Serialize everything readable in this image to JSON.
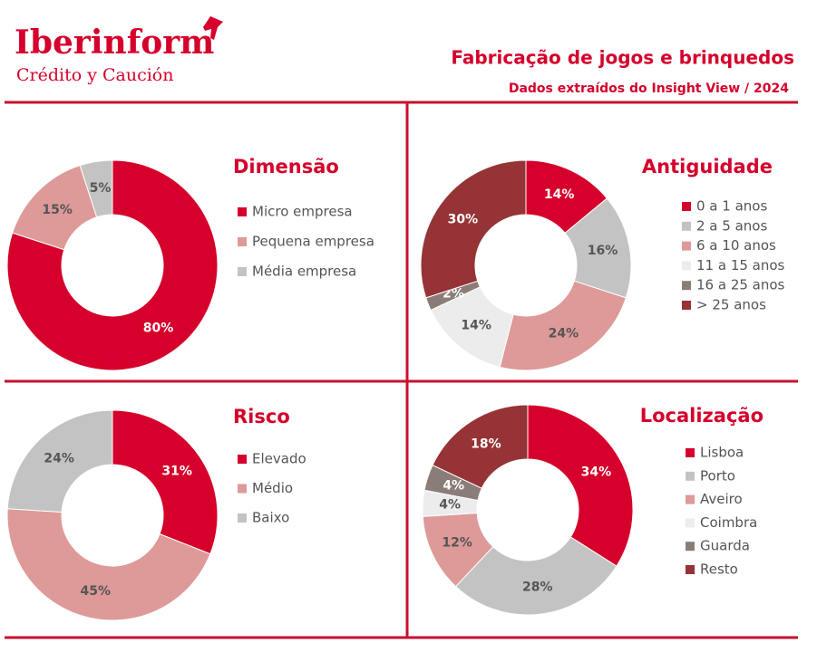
{
  "header": {
    "brand": "Iberinform",
    "tagline": "Crédito y Caución",
    "title": "Fabricação de jogos e brinquedos",
    "subtitle": "Dados extraídos do Insight View / 2024"
  },
  "chart_data": [
    {
      "type": "pie",
      "title": "Dimensão",
      "categories": [
        "Micro empresa",
        "Pequena empresa",
        "Média empresa"
      ],
      "values": [
        80,
        15,
        5
      ],
      "value_labels": [
        "80%",
        "15%",
        "5%"
      ],
      "colors": [
        "#d5002b",
        "#dd9a98",
        "#c3c3c3"
      ]
    },
    {
      "type": "pie",
      "title": "Antiguidade",
      "categories": [
        "0 a 1 anos",
        "2 a 5 anos",
        "6 a 10 anos",
        "11 a 15 anos",
        "16 a 25 anos",
        "> 25 anos"
      ],
      "values": [
        14,
        16,
        24,
        14,
        2,
        30
      ],
      "value_labels": [
        "14%",
        "16%",
        "24%",
        "14%",
        "2%",
        "30%"
      ],
      "colors": [
        "#d5002b",
        "#c3c3c3",
        "#dd9a98",
        "#ececec",
        "#8a7d78",
        "#963336"
      ]
    },
    {
      "type": "pie",
      "title": "Risco",
      "categories": [
        "Elevado",
        "Médio",
        "Baixo"
      ],
      "values": [
        31,
        45,
        24
      ],
      "value_labels": [
        "31%",
        "45%",
        "24%"
      ],
      "colors": [
        "#d5002b",
        "#dd9a98",
        "#c3c3c3"
      ]
    },
    {
      "type": "pie",
      "title": "Localização",
      "categories": [
        "Lisboa",
        "Porto",
        "Aveiro",
        "Coimbra",
        "Guarda",
        "Resto"
      ],
      "values": [
        34,
        28,
        12,
        4,
        4,
        18
      ],
      "value_labels": [
        "34%",
        "28%",
        "12%",
        "4%",
        "4%",
        "18%"
      ],
      "colors": [
        "#d5002b",
        "#c3c3c3",
        "#dd9a98",
        "#ececec",
        "#8a7d78",
        "#963336"
      ]
    }
  ]
}
